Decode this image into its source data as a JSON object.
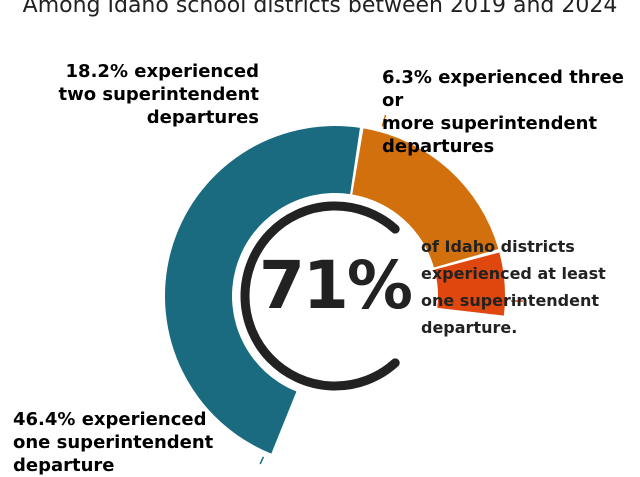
{
  "header": {
    "title": "Among Idaho school districts between 2019 and 2024"
  },
  "chart_data": {
    "type": "pie",
    "title": "Among Idaho school districts between 2019 and 2024",
    "slices": [
      {
        "label": "46.4% experienced one superintendent departure",
        "value": 46.4,
        "color": "#1a6b80"
      },
      {
        "label": "18.2% experienced two superintendent departures",
        "value": 18.2,
        "color": "#d2700e"
      },
      {
        "label": "6.3% experienced three or more superintendent departures",
        "value": 6.3,
        "color": "#e0470e"
      }
    ],
    "center_value": "71%",
    "center_text": "of Idaho districts experienced at least one superintendent departure."
  }
}
